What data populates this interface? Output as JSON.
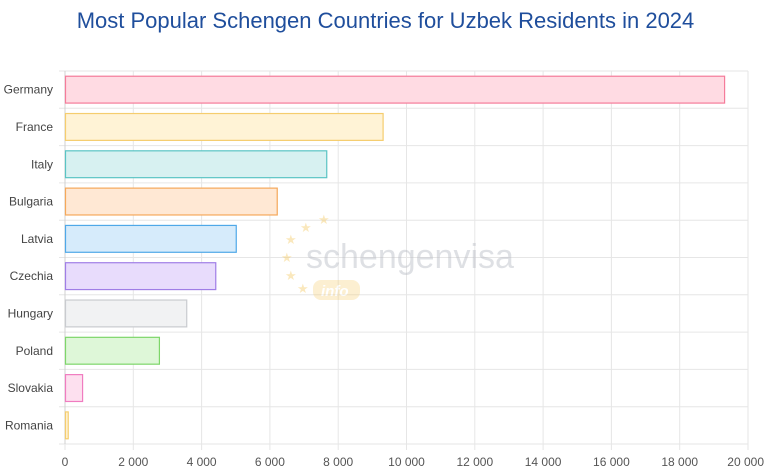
{
  "chart_data": {
    "type": "bar",
    "orientation": "horizontal",
    "title": "Most Popular Schengen Countries for Uzbek Residents in 2024",
    "categories": [
      "Germany",
      "France",
      "Italy",
      "Bulgaria",
      "Latvia",
      "Czechia",
      "Hungary",
      "Poland",
      "Slovakia",
      "Romania"
    ],
    "values": [
      19300,
      9300,
      7650,
      6200,
      5000,
      4400,
      3550,
      2750,
      500,
      80
    ],
    "xlim": [
      0,
      20000
    ],
    "xticks": [
      0,
      2000,
      4000,
      6000,
      8000,
      10000,
      12000,
      14000,
      16000,
      18000,
      20000
    ],
    "xtick_labels": [
      "0",
      "2 000",
      "4 000",
      "6 000",
      "8 000",
      "10 000",
      "12 000",
      "14 000",
      "16 000",
      "18 000",
      "20 000"
    ],
    "grid": true,
    "legend": "none",
    "colors": {
      "fills": [
        "#ffdbe3",
        "#fff3d6",
        "#d7f1f1",
        "#ffe8d4",
        "#d6ebfb",
        "#e8dcfc",
        "#f1f2f3",
        "#def7d8",
        "#fde0ef",
        "#fff3d6"
      ],
      "strokes": [
        "#f57c9a",
        "#f5cd6e",
        "#5ac4c4",
        "#f5a85a",
        "#4fa8e8",
        "#a07ee6",
        "#c9cbcf",
        "#7ed66a",
        "#f07cc0",
        "#f5cd6e"
      ]
    }
  },
  "watermark": {
    "brand": "schengenvisa",
    "badge": "info"
  }
}
